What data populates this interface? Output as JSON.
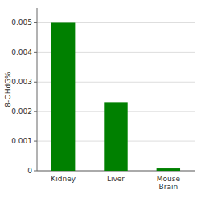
{
  "chart_data": {
    "type": "bar",
    "categories": [
      "Kidney",
      "Liver",
      "Mouse\nBrain"
    ],
    "values": [
      0.005,
      0.00232,
      8e-05
    ],
    "color": "#008000",
    "ylabel": "8-OHdG%",
    "ylim": [
      0,
      0.0055
    ],
    "yticks": [
      0,
      0.001,
      0.002,
      0.003,
      0.004,
      0.005
    ],
    "grid": true
  }
}
